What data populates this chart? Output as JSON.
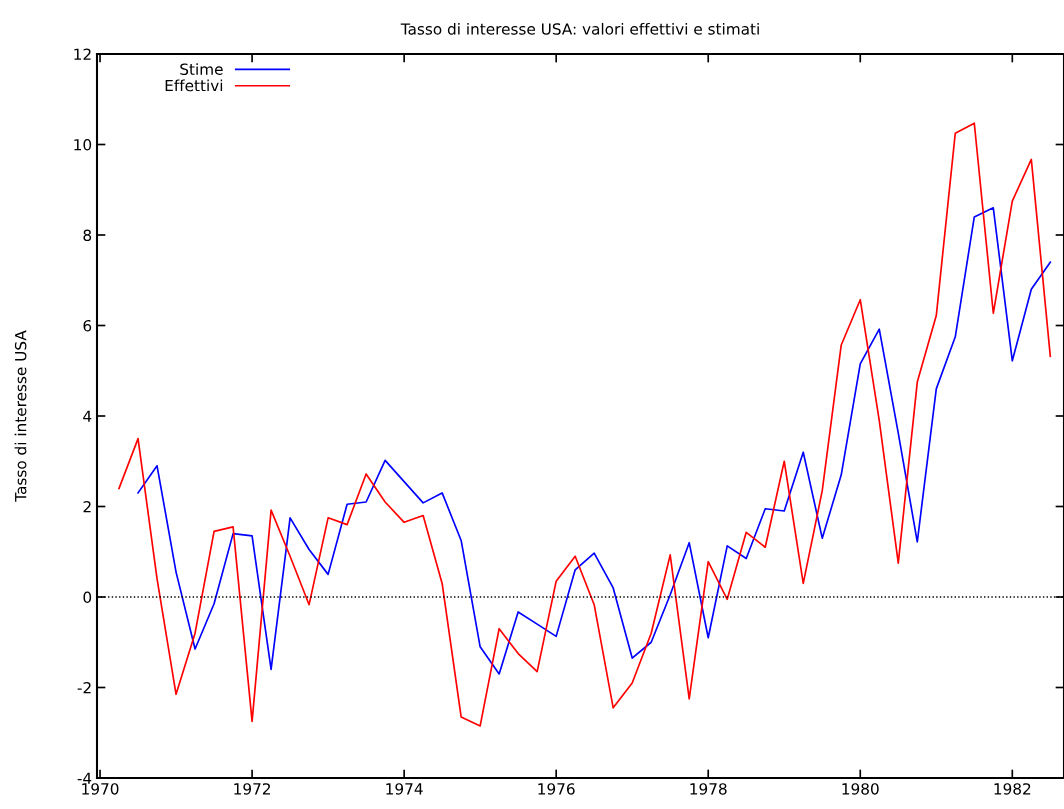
{
  "chart_data": {
    "type": "line",
    "title": "Tasso di interesse USA: valori effettivi e stimati",
    "ylabel": "Tasso di interesse USA",
    "xlim": [
      1969.96,
      1982.68
    ],
    "xticks": [
      1970,
      1972,
      1974,
      1976,
      1978,
      1980,
      1982
    ],
    "ylim": [
      -4,
      12
    ],
    "yticks": [
      -4,
      -2,
      0,
      2,
      4,
      6,
      8,
      10,
      12
    ],
    "grid": false,
    "legend": "top left",
    "line_style": "solid",
    "marker": "none",
    "ref_lines": [
      {
        "axis": "y",
        "value": 0,
        "label": null,
        "color": "#000000",
        "line_style": "dotted"
      }
    ],
    "series": [
      {
        "name": "Stime",
        "color": "#0000ff",
        "x": [
          1970.5,
          1970.75,
          1971,
          1971.25,
          1971.5,
          1971.75,
          1972,
          1972.25,
          1972.5,
          1972.75,
          1973,
          1973.25,
          1973.5,
          1973.75,
          1974,
          1974.25,
          1974.5,
          1974.75,
          1975,
          1975.25,
          1975.5,
          1975.75,
          1976,
          1976.25,
          1976.5,
          1976.75,
          1977,
          1977.25,
          1977.5,
          1977.75,
          1978,
          1978.25,
          1978.5,
          1978.75,
          1979,
          1979.25,
          1979.5,
          1979.75,
          1980,
          1980.25,
          1980.5,
          1980.75,
          1981,
          1981.25,
          1981.5,
          1981.75,
          1982,
          1982.25,
          1982.5
        ],
        "values": [
          2.3,
          2.9,
          0.55,
          -1.15,
          -0.15,
          1.4,
          1.35,
          -1.6,
          1.75,
          1.05,
          0.5,
          2.05,
          2.1,
          3.02,
          2.55,
          2.08,
          2.3,
          1.25,
          -1.1,
          -1.7,
          -0.33,
          -0.6,
          -0.87,
          0.6,
          0.97,
          0.2,
          -1.35,
          -1.0,
          0.05,
          1.2,
          -0.9,
          1.13,
          0.85,
          1.95,
          1.9,
          3.2,
          1.3,
          2.7,
          5.15,
          5.92,
          3.62,
          1.22,
          4.6,
          5.75,
          8.4,
          8.6,
          5.22,
          6.8,
          7.4
        ]
      },
      {
        "name": "Effettivi",
        "color": "#ff0000",
        "x": [
          1970.25,
          1970.5,
          1970.75,
          1971,
          1971.25,
          1971.5,
          1971.75,
          1972,
          1972.25,
          1972.5,
          1972.75,
          1973,
          1973.25,
          1973.5,
          1973.75,
          1974,
          1974.25,
          1974.5,
          1974.75,
          1975,
          1975.25,
          1975.5,
          1975.75,
          1976,
          1976.25,
          1976.5,
          1976.75,
          1977,
          1977.25,
          1977.5,
          1977.75,
          1978,
          1978.25,
          1978.5,
          1978.75,
          1979,
          1979.25,
          1979.5,
          1979.75,
          1980,
          1980.25,
          1980.5,
          1980.75,
          1981,
          1981.25,
          1981.5,
          1981.75,
          1982,
          1982.25,
          1982.5
        ],
        "values": [
          2.4,
          3.5,
          0.4,
          -2.15,
          -0.8,
          1.45,
          1.55,
          -2.75,
          1.92,
          0.9,
          -0.17,
          1.75,
          1.6,
          2.72,
          2.1,
          1.65,
          1.8,
          0.3,
          -2.65,
          -2.85,
          -0.7,
          -1.25,
          -1.65,
          0.35,
          0.9,
          -0.17,
          -2.45,
          -1.9,
          -0.8,
          0.93,
          -2.25,
          0.78,
          -0.05,
          1.43,
          1.1,
          3.0,
          0.3,
          2.35,
          5.57,
          6.57,
          3.9,
          0.75,
          4.75,
          6.22,
          10.25,
          10.47,
          6.27,
          8.75,
          9.67,
          5.32
        ]
      }
    ]
  }
}
